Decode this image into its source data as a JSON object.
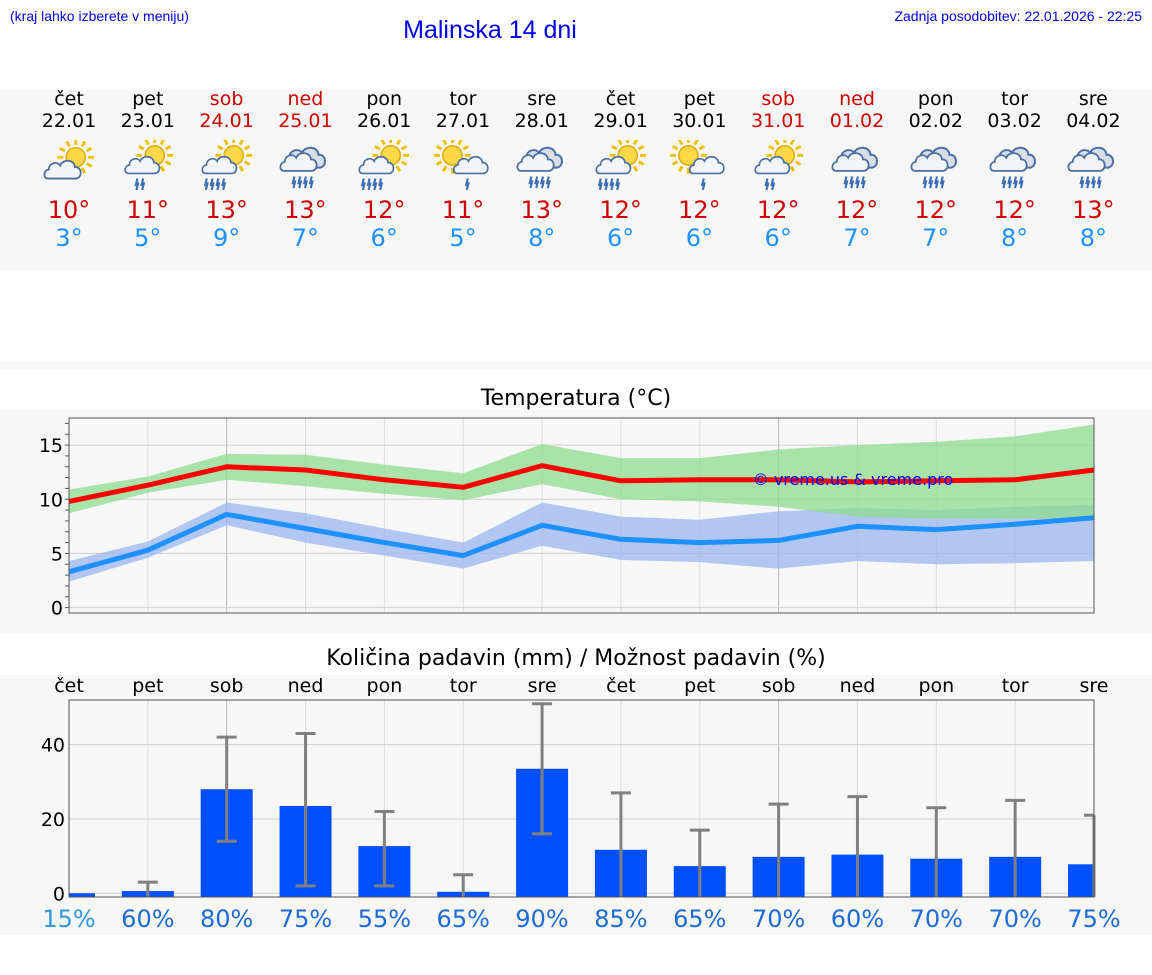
{
  "header": {
    "hint": "(kraj lahko izberete v meniju)",
    "title": "Malinska 14 dni",
    "updated": "Zadnja posodobitev: 22.01.2026 - 22:25"
  },
  "days": [
    {
      "dow": "čet",
      "date": "22.01",
      "weekend": false,
      "icon": "partly-cloudy-icon",
      "tmax": "10°",
      "tmin": "3°"
    },
    {
      "dow": "pet",
      "date": "23.01",
      "weekend": false,
      "icon": "sun-cloud-rain-icon",
      "tmax": "11°",
      "tmin": "5°"
    },
    {
      "dow": "sob",
      "date": "24.01",
      "weekend": true,
      "icon": "sun-cloud-heavy-rain-icon",
      "tmax": "13°",
      "tmin": "9°"
    },
    {
      "dow": "ned",
      "date": "25.01",
      "weekend": true,
      "icon": "cloud-rain-icon",
      "tmax": "13°",
      "tmin": "7°"
    },
    {
      "dow": "pon",
      "date": "26.01",
      "weekend": false,
      "icon": "sun-cloud-heavy-rain-icon",
      "tmax": "12°",
      "tmin": "6°"
    },
    {
      "dow": "tor",
      "date": "27.01",
      "weekend": false,
      "icon": "sun-cloud-light-rain-icon",
      "tmax": "11°",
      "tmin": "5°"
    },
    {
      "dow": "sre",
      "date": "28.01",
      "weekend": false,
      "icon": "cloud-rain-icon",
      "tmax": "13°",
      "tmin": "8°"
    },
    {
      "dow": "čet",
      "date": "29.01",
      "weekend": false,
      "icon": "sun-cloud-heavy-rain-icon",
      "tmax": "12°",
      "tmin": "6°"
    },
    {
      "dow": "pet",
      "date": "30.01",
      "weekend": false,
      "icon": "sun-cloud-light-rain-icon",
      "tmax": "12°",
      "tmin": "6°"
    },
    {
      "dow": "sob",
      "date": "31.01",
      "weekend": true,
      "icon": "sun-cloud-rain-icon",
      "tmax": "12°",
      "tmin": "6°"
    },
    {
      "dow": "ned",
      "date": "01.02",
      "weekend": true,
      "icon": "cloud-rain-icon",
      "tmax": "12°",
      "tmin": "7°"
    },
    {
      "dow": "pon",
      "date": "02.02",
      "weekend": false,
      "icon": "cloud-rain-icon",
      "tmax": "12°",
      "tmin": "7°"
    },
    {
      "dow": "tor",
      "date": "03.02",
      "weekend": false,
      "icon": "cloud-rain-icon",
      "tmax": "12°",
      "tmin": "8°"
    },
    {
      "dow": "sre",
      "date": "04.02",
      "weekend": false,
      "icon": "cloud-rain-icon",
      "tmax": "13°",
      "tmin": "8°"
    }
  ],
  "colors": {
    "max_line": "#ff0000",
    "max_band": "#8fdc8f",
    "min_line": "#1e90ff",
    "min_band": "#9ab6ee",
    "bar": "#0050ff",
    "error": "#808080",
    "pct_first": "#3399dd",
    "pct": "#1e6bd6",
    "watermark": "#0000ee"
  },
  "chart_data": [
    {
      "type": "line",
      "title": "Temperatura (°C)",
      "watermark": "© vreme.us & vreme.pro",
      "categories": [
        "22.01",
        "23.01",
        "24.01",
        "25.01",
        "26.01",
        "27.01",
        "28.01",
        "29.01",
        "30.01",
        "31.01",
        "01.02",
        "02.02",
        "03.02",
        "04.02"
      ],
      "ylim": [
        -0.5,
        17.5
      ],
      "yticks": [
        0,
        5,
        10,
        15
      ],
      "series": [
        {
          "name": "max",
          "values": [
            9.8,
            11.3,
            13.0,
            12.7,
            11.8,
            11.1,
            13.1,
            11.7,
            11.8,
            11.8,
            11.6,
            11.7,
            11.8,
            12.7
          ],
          "band_low": [
            8.7,
            10.6,
            11.8,
            11.2,
            10.5,
            9.9,
            11.4,
            10.0,
            9.8,
            9.3,
            8.4,
            8.2,
            8.2,
            8.3
          ],
          "band_high": [
            10.9,
            12.1,
            14.2,
            14.1,
            13.2,
            12.4,
            15.1,
            13.8,
            13.8,
            14.6,
            15.0,
            15.3,
            15.8,
            16.9
          ]
        },
        {
          "name": "min",
          "values": [
            3.3,
            5.3,
            8.6,
            7.3,
            6.0,
            4.8,
            7.6,
            6.3,
            6.0,
            6.2,
            7.5,
            7.2,
            7.7,
            8.3
          ],
          "band_low": [
            2.4,
            4.6,
            7.6,
            6.0,
            4.8,
            3.6,
            5.7,
            4.4,
            4.2,
            3.6,
            4.3,
            4.0,
            4.1,
            4.3
          ],
          "band_high": [
            4.3,
            6.1,
            9.7,
            8.7,
            7.3,
            6.0,
            9.7,
            8.4,
            8.1,
            8.9,
            9.2,
            9.0,
            9.3,
            9.5
          ]
        }
      ]
    },
    {
      "type": "bar",
      "title": "Količina padavin (mm) / Možnost padavin (%)",
      "categories": [
        "čet",
        "pet",
        "sob",
        "ned",
        "pon",
        "tor",
        "sre",
        "čet",
        "pet",
        "sob",
        "ned",
        "pon",
        "tor",
        "sre"
      ],
      "ylim": [
        -1,
        52
      ],
      "yticks": [
        0,
        20,
        40
      ],
      "values": [
        0.0,
        0.6,
        28.0,
        23.5,
        12.7,
        0.4,
        33.5,
        11.7,
        7.3,
        9.8,
        10.4,
        9.3,
        9.8,
        7.8
      ],
      "error_low": [
        0,
        0,
        14,
        2,
        2,
        0,
        16,
        0,
        0,
        0,
        0,
        0,
        0,
        0
      ],
      "error_high": [
        0,
        3,
        42,
        43,
        22,
        5,
        51,
        27,
        17,
        24,
        26,
        23,
        25,
        21
      ],
      "probability": [
        "15%",
        "60%",
        "80%",
        "75%",
        "55%",
        "65%",
        "90%",
        "85%",
        "65%",
        "70%",
        "60%",
        "70%",
        "70%",
        "75%"
      ]
    }
  ]
}
